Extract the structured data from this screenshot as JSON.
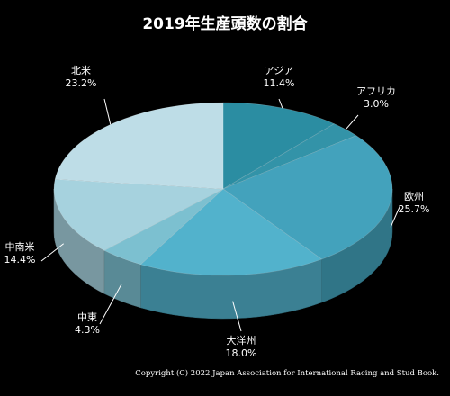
{
  "chart_data": {
    "type": "pie",
    "title": "2019年生産頭数の割合",
    "slices": [
      {
        "label": "アジア",
        "value": 11.4,
        "value_text": "11.4%",
        "color": "#2b8da2"
      },
      {
        "label": "アフリカ",
        "value": 3.0,
        "value_text": "3.0%",
        "color": "#3393a8"
      },
      {
        "label": "欧州",
        "value": 25.7,
        "value_text": "25.7%",
        "color": "#43a2bc"
      },
      {
        "label": "大洋州",
        "value": 18.0,
        "value_text": "18.0%",
        "color": "#52b2cc"
      },
      {
        "label": "中東",
        "value": 4.3,
        "value_text": "4.3%",
        "color": "#7cc0d0"
      },
      {
        "label": "中南米",
        "value": 14.4,
        "value_text": "14.4%",
        "color": "#a6d2de"
      },
      {
        "label": "北米",
        "value": 23.2,
        "value_text": "23.2%",
        "color": "#bedde7"
      }
    ],
    "style": "3d-pie",
    "legend": "none",
    "labels": "outside-with-leader-lines"
  },
  "copyright": "Copyright (C) 2022 Japan Association for International Racing and Stud Book."
}
